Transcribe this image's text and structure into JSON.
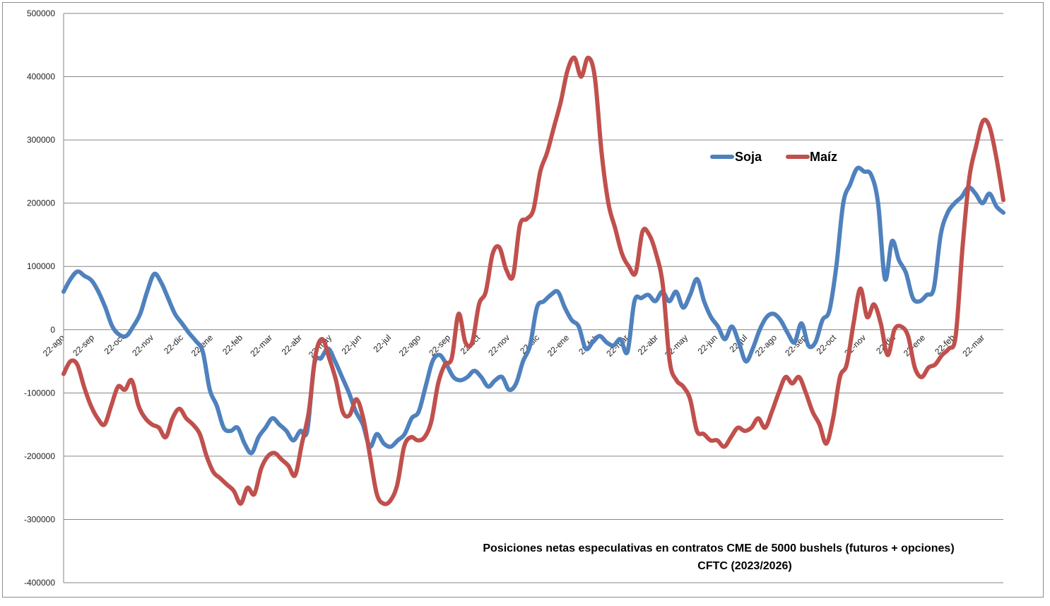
{
  "chart_data": {
    "type": "line",
    "title": "Posiciones netas especulativas en contratos CME de 5000 bushels (futuros + opciones)",
    "subtitle": "CFTC (2023/2026)",
    "xlabel": "",
    "ylabel": "",
    "ylim": [
      -400000,
      500000
    ],
    "ytick_step": 100000,
    "y_ticks": [
      "500000",
      "400000",
      "300000",
      "200000",
      "100000",
      "0",
      "-100000",
      "-200000",
      "-300000",
      "-400000"
    ],
    "grid": true,
    "legend_position": "top-right",
    "x_tick_labels": [
      "22-ago",
      "22-sep",
      "22-oct",
      "22-nov",
      "22-dic",
      "22-ene",
      "22-feb",
      "22-mar",
      "22-abr",
      "22-may",
      "22-jun",
      "22-jul",
      "22-ago",
      "22-sep",
      "22-oct",
      "22-nov",
      "22-dic",
      "22-ene",
      "22-feb",
      "22-mar",
      "22-abr",
      "22-may",
      "22-jun",
      "22-jul",
      "22-ago",
      "22-sep",
      "22-oct",
      "22-nov",
      "22-dic",
      "22-ene",
      "22-feb",
      "22-mar"
    ],
    "series": [
      {
        "name": "Soja",
        "color": "#4f81bd",
        "values": [
          60000,
          80000,
          92000,
          85000,
          78000,
          60000,
          35000,
          5000,
          -8000,
          -10000,
          5000,
          25000,
          60000,
          88000,
          75000,
          50000,
          25000,
          10000,
          -5000,
          -18000,
          -35000,
          -95000,
          -120000,
          -155000,
          -160000,
          -155000,
          -180000,
          -195000,
          -170000,
          -155000,
          -140000,
          -150000,
          -160000,
          -175000,
          -160000,
          -160000,
          -55000,
          -45000,
          -30000,
          -50000,
          -75000,
          -100000,
          -130000,
          -150000,
          -185000,
          -165000,
          -180000,
          -185000,
          -175000,
          -165000,
          -140000,
          -130000,
          -90000,
          -50000,
          -40000,
          -55000,
          -75000,
          -80000,
          -75000,
          -65000,
          -75000,
          -90000,
          -80000,
          -75000,
          -95000,
          -85000,
          -50000,
          -25000,
          35000,
          45000,
          55000,
          60000,
          35000,
          15000,
          5000,
          -30000,
          -20000,
          -10000,
          -20000,
          -25000,
          -15000,
          -35000,
          45000,
          50000,
          55000,
          45000,
          60000,
          45000,
          60000,
          35000,
          55000,
          80000,
          45000,
          20000,
          5000,
          -15000,
          5000,
          -20000,
          -50000,
          -30000,
          0,
          20000,
          25000,
          15000,
          -5000,
          -20000,
          10000,
          -25000,
          -20000,
          15000,
          30000,
          100000,
          200000,
          230000,
          255000,
          250000,
          245000,
          200000,
          80000,
          140000,
          110000,
          90000,
          50000,
          45000,
          55000,
          65000,
          150000,
          185000,
          200000,
          210000,
          225000,
          215000,
          200000,
          215000,
          195000,
          185000
        ]
      },
      {
        "name": "Maíz",
        "color": "#c0504d",
        "values": [
          -70000,
          -50000,
          -55000,
          -90000,
          -120000,
          -140000,
          -150000,
          -120000,
          -90000,
          -95000,
          -80000,
          -120000,
          -140000,
          -150000,
          -155000,
          -170000,
          -140000,
          -125000,
          -140000,
          -150000,
          -165000,
          -200000,
          -225000,
          -235000,
          -245000,
          -255000,
          -275000,
          -250000,
          -260000,
          -220000,
          -200000,
          -195000,
          -205000,
          -215000,
          -230000,
          -180000,
          -130000,
          -40000,
          -15000,
          -45000,
          -80000,
          -130000,
          -135000,
          -110000,
          -140000,
          -200000,
          -260000,
          -275000,
          -270000,
          -245000,
          -185000,
          -170000,
          -175000,
          -170000,
          -145000,
          -85000,
          -55000,
          -45000,
          25000,
          -20000,
          -20000,
          40000,
          60000,
          120000,
          130000,
          95000,
          85000,
          165000,
          175000,
          190000,
          250000,
          280000,
          320000,
          360000,
          410000,
          430000,
          400000,
          430000,
          400000,
          280000,
          200000,
          160000,
          120000,
          100000,
          90000,
          155000,
          150000,
          120000,
          70000,
          -50000,
          -80000,
          -90000,
          -110000,
          -160000,
          -165000,
          -175000,
          -175000,
          -185000,
          -170000,
          -155000,
          -160000,
          -155000,
          -140000,
          -155000,
          -130000,
          -100000,
          -75000,
          -85000,
          -75000,
          -100000,
          -130000,
          -150000,
          -180000,
          -140000,
          -75000,
          -55000,
          10000,
          65000,
          20000,
          40000,
          10000,
          -40000,
          0,
          5000,
          -10000,
          -60000,
          -75000,
          -60000,
          -55000,
          -40000,
          -30000,
          -10000,
          130000,
          240000,
          290000,
          330000,
          320000,
          270000,
          205000
        ]
      }
    ]
  }
}
